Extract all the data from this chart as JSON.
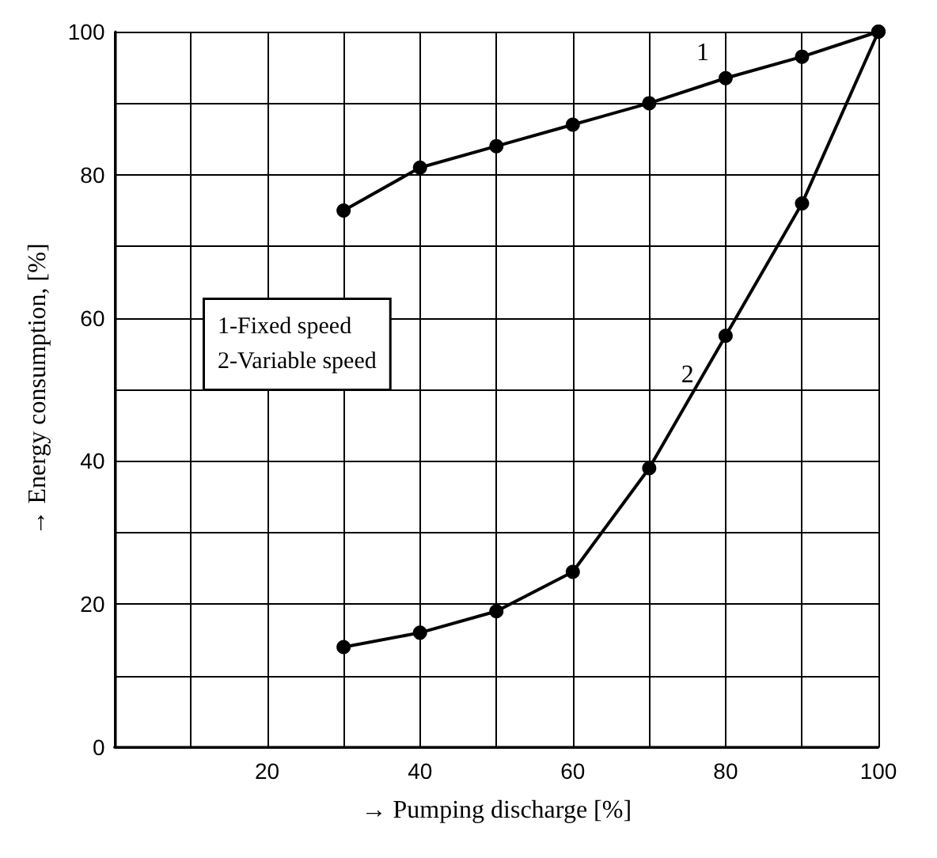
{
  "chart_data": {
    "type": "line",
    "xlabel": "→ Pumping discharge [%]",
    "ylabel": "→ Energy consumption, [%]",
    "x": [
      30,
      40,
      50,
      60,
      70,
      80,
      90,
      100
    ],
    "series": [
      {
        "color": "#000000",
        "values": [
          75,
          81,
          84,
          87,
          90,
          93.5,
          96.5,
          100
        ]
      },
      {
        "color": "#000000",
        "values": [
          14,
          16,
          19,
          24.5,
          39,
          57.5,
          76,
          100
        ]
      }
    ],
    "xlim": [
      0,
      100
    ],
    "ylim": [
      0,
      100
    ],
    "xticks": [
      {
        "value": 0,
        "label": null
      },
      {
        "value": 10,
        "label": null
      },
      20,
      {
        "value": 30,
        "label": null
      },
      40,
      {
        "value": 50,
        "label": null
      },
      60,
      {
        "value": 70,
        "label": null
      },
      80,
      {
        "value": 90,
        "label": null
      },
      100
    ],
    "yticks": [
      0,
      {
        "value": 10,
        "label": null
      },
      20,
      {
        "value": 30,
        "label": null
      },
      40,
      {
        "value": 50,
        "label": null
      },
      60,
      {
        "value": 70,
        "label": null
      },
      80,
      {
        "value": 90,
        "label": null
      },
      100
    ],
    "grid": true,
    "marker": "circle",
    "line_style": "solid",
    "annotations": [
      {
        "text": "1",
        "x": 77,
        "y": 97
      },
      {
        "text": "2",
        "x": 75,
        "y": 52
      },
      "1-Fixed speed\n2-Variable speed"
    ]
  }
}
